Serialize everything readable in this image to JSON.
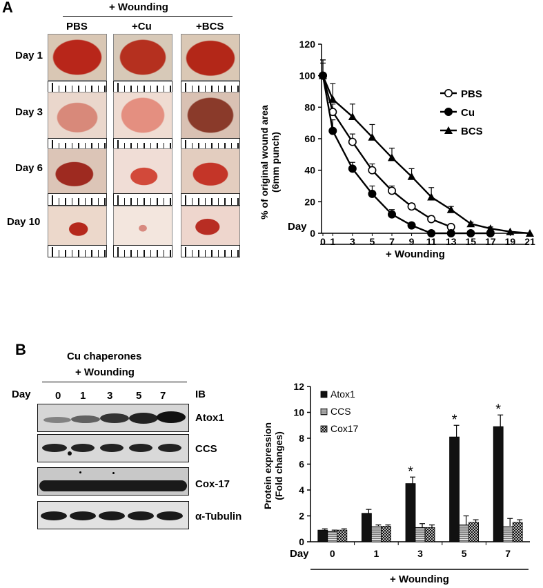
{
  "panel_a": {
    "letter": "A",
    "wounding_header": "+ Wounding",
    "treatments": [
      "PBS",
      "+Cu",
      "+BCS"
    ],
    "days": [
      "Day 1",
      "Day 3",
      "Day 6",
      "Day 10"
    ]
  },
  "panel_b": {
    "letter": "B",
    "header_line1": "Cu chaperones",
    "header_line2": "+ Wounding",
    "day_label": "Day",
    "days": [
      "0",
      "1",
      "3",
      "5",
      "7"
    ],
    "ib_label": "IB",
    "proteins": [
      "Atox1",
      "CCS",
      "Cox-17",
      "α-Tubulin"
    ]
  },
  "chart_data": [
    {
      "type": "line",
      "ylabel": "% of original wound area",
      "ylabel2": "(6mm punch)",
      "xlabel": "+ Wounding",
      "x_prefix": "Day",
      "x": [
        0,
        1,
        3,
        5,
        7,
        9,
        11,
        13,
        15,
        17,
        19,
        21
      ],
      "yticks": [
        0,
        20,
        40,
        60,
        80,
        100,
        120
      ],
      "ylim": [
        0,
        120
      ],
      "legend_position": "right",
      "series": [
        {
          "name": "PBS",
          "marker": "open-circle",
          "x": [
            0,
            1,
            3,
            5,
            7,
            9,
            11,
            13
          ],
          "values": [
            100,
            77,
            58,
            40,
            27,
            17,
            9,
            4
          ],
          "errors": [
            10,
            5,
            5,
            4,
            3,
            2,
            2,
            1
          ]
        },
        {
          "name": "Cu",
          "marker": "filled-circle",
          "x": [
            0,
            1,
            3,
            5,
            7,
            9,
            11,
            13,
            15,
            17
          ],
          "values": [
            100,
            65,
            41,
            25,
            12,
            5,
            0,
            0,
            0,
            0
          ],
          "errors": [
            10,
            7,
            4,
            5,
            3,
            0,
            0,
            0,
            0,
            0
          ]
        },
        {
          "name": "BCS",
          "marker": "filled-triangle",
          "x": [
            0,
            1,
            3,
            5,
            7,
            9,
            11,
            13,
            15,
            17,
            19,
            21
          ],
          "values": [
            100,
            85,
            74,
            61,
            48,
            36,
            23,
            15,
            6,
            3,
            1,
            0
          ],
          "errors": [
            8,
            10,
            8,
            8,
            6,
            5,
            6,
            2,
            1,
            1,
            0,
            0
          ]
        }
      ]
    },
    {
      "type": "bar",
      "ylabel": "Protein expression",
      "ylabel2": "(Fold changes)",
      "xlabel": "+ Wounding",
      "x_prefix": "Day",
      "categories": [
        "0",
        "1",
        "3",
        "5",
        "7"
      ],
      "ylim": [
        0,
        12
      ],
      "yticks": [
        0,
        2,
        4,
        6,
        8,
        10,
        12
      ],
      "legend_position": "top-left",
      "series": [
        {
          "name": "Atox1",
          "pattern": "solid",
          "values": [
            0.9,
            2.2,
            4.5,
            8.1,
            8.9
          ],
          "errors": [
            0.1,
            0.3,
            0.5,
            0.9,
            0.9
          ]
        },
        {
          "name": "CCS",
          "pattern": "horizontal-lines",
          "values": [
            0.8,
            1.2,
            1.1,
            1.3,
            1.2
          ],
          "errors": [
            0.1,
            0.1,
            0.3,
            0.7,
            0.6
          ]
        },
        {
          "name": "Cox17",
          "pattern": "crosshatch",
          "values": [
            0.9,
            1.2,
            1.1,
            1.5,
            1.5
          ],
          "errors": [
            0.1,
            0.1,
            0.2,
            0.2,
            0.2
          ]
        }
      ],
      "significance": [
        "",
        "",
        "*",
        "*",
        "*"
      ]
    }
  ]
}
